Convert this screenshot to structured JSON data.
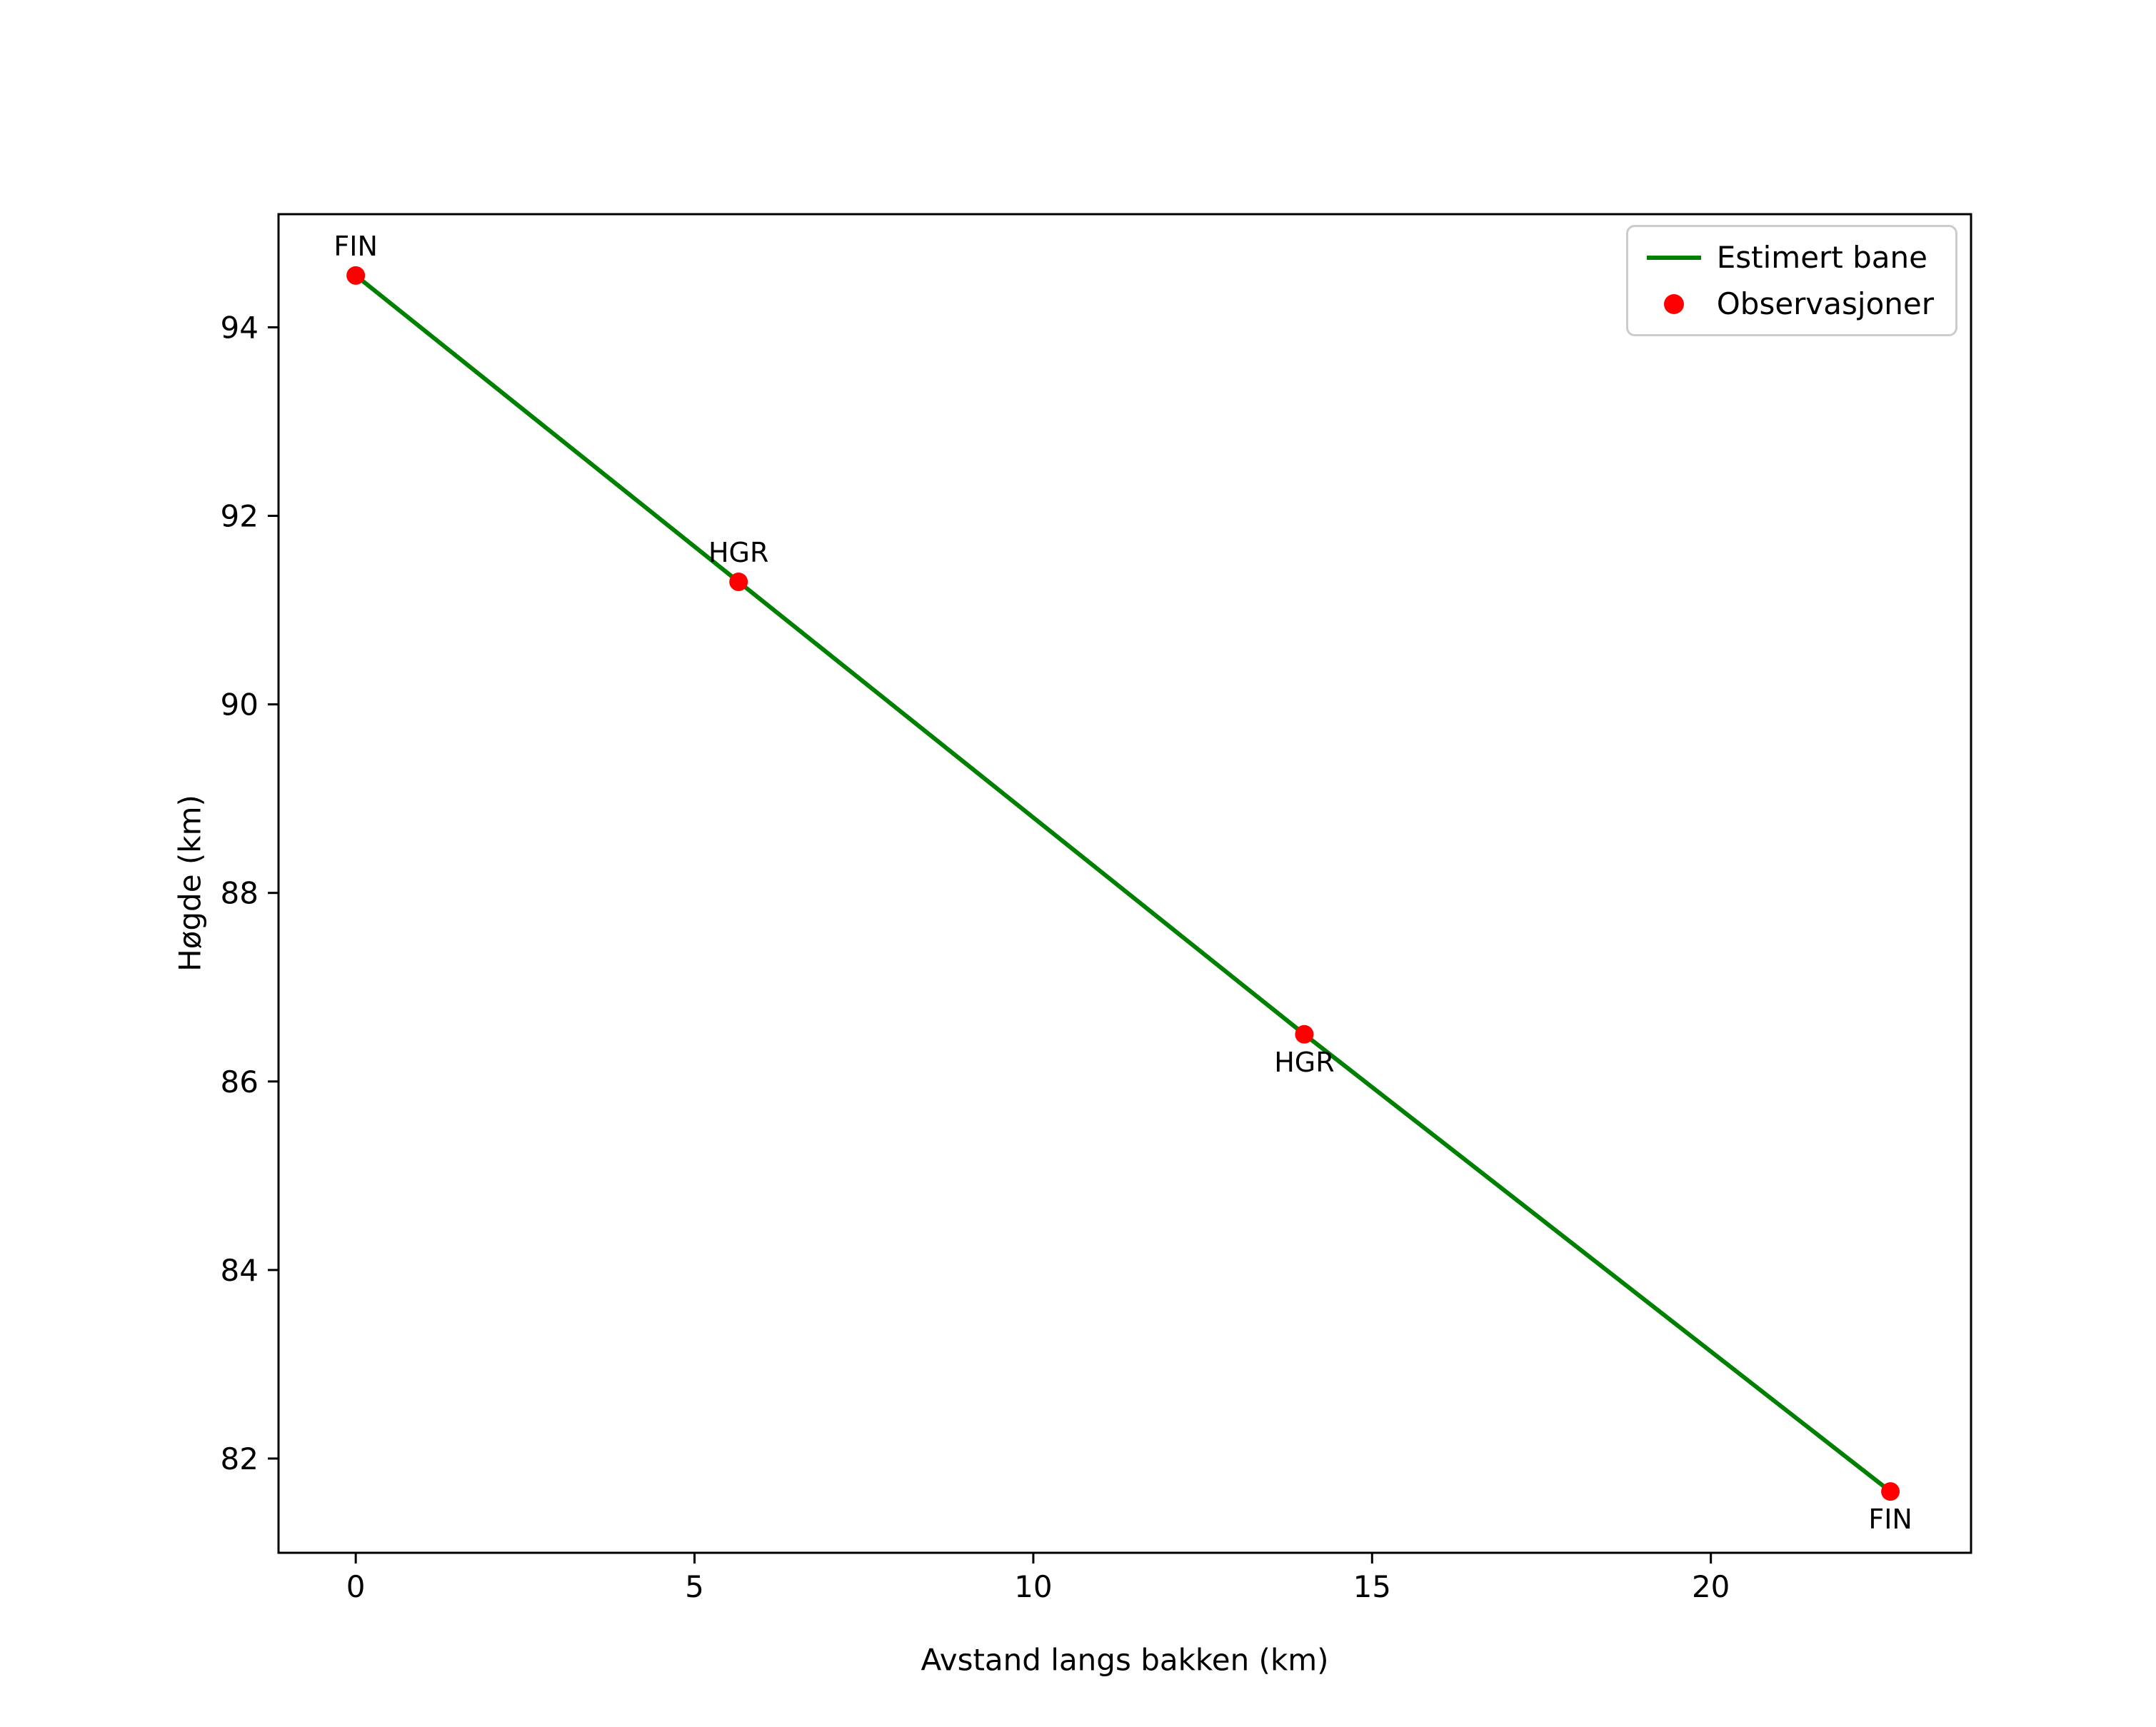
{
  "chart_data": {
    "type": "line",
    "title": "",
    "xlabel": "Avstand langs bakken (km)",
    "ylabel": "Høgde (km)",
    "xlim": [
      -1.14,
      23.84
    ],
    "ylim": [
      81.0,
      95.2
    ],
    "xticks": [
      0,
      5,
      10,
      15,
      20
    ],
    "yticks": [
      82,
      84,
      86,
      88,
      90,
      92,
      94
    ],
    "grid": false,
    "legend_position": "top-right",
    "series": [
      {
        "name": "Estimert bane",
        "type": "line",
        "color": "#008000",
        "points": [
          [
            0,
            94.55
          ],
          [
            5.65,
            91.3
          ],
          [
            14.0,
            86.5
          ],
          [
            22.65,
            81.65
          ]
        ]
      },
      {
        "name": "Observasjoner",
        "type": "scatter",
        "color": "#ff0000",
        "points": [
          {
            "x": 0,
            "y": 94.55,
            "label": "FIN",
            "label_pos": "above"
          },
          {
            "x": 5.65,
            "y": 91.3,
            "label": "HGR",
            "label_pos": "above"
          },
          {
            "x": 14.0,
            "y": 86.5,
            "label": "HGR",
            "label_pos": "below"
          },
          {
            "x": 22.65,
            "y": 81.65,
            "label": "FIN",
            "label_pos": "below"
          }
        ]
      }
    ],
    "legend": [
      {
        "label": "Estimert bane",
        "marker": "line",
        "color": "#008000"
      },
      {
        "label": "Observasjoner",
        "marker": "dot",
        "color": "#ff0000"
      }
    ]
  }
}
